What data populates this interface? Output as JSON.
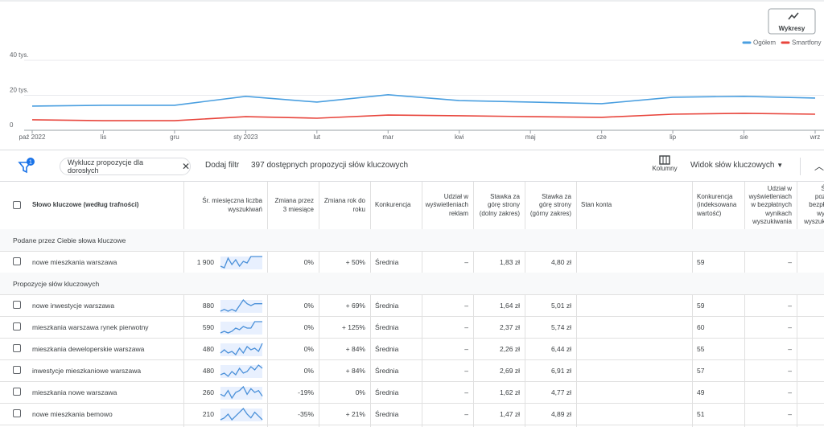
{
  "chart_data": {
    "type": "line",
    "button": "Wykresy",
    "x": [
      "paź 2022",
      "lis",
      "gru",
      "sty 2023",
      "lut",
      "mar",
      "kwi",
      "maj",
      "cze",
      "lip",
      "sie",
      "wrz"
    ],
    "ylim": [
      0,
      40000
    ],
    "yticks": [
      {
        "value": 0,
        "label": "0"
      },
      {
        "value": 20000,
        "label": "20 tys."
      },
      {
        "value": 40000,
        "label": "40 tys."
      }
    ],
    "grid": true,
    "series": [
      {
        "name": "Ogółem",
        "color": "#4a9fe0",
        "values": [
          13800,
          14300,
          14300,
          19400,
          16100,
          20300,
          17000,
          16100,
          15200,
          18900,
          19400,
          18400
        ]
      },
      {
        "name": "Smartfony",
        "color": "#e8453c",
        "values": [
          6000,
          5500,
          5500,
          7800,
          6900,
          8700,
          8300,
          7800,
          7400,
          9200,
          9700,
          9200
        ]
      }
    ]
  },
  "toolbar": {
    "filter_count": "1",
    "chip": "Wyklucz propozycje dla dorosłych",
    "add_filter": "Dodaj filtr",
    "summary": "397 dostępnych propozycji słów kluczowych",
    "columns": "Kolumny",
    "view": "Widok słów kluczowych"
  },
  "table": {
    "headers": [
      "Słowo kluczowe (według trafności)",
      "Śr. miesięczna liczba wyszukiwań",
      "Zmiana przez 3 miesiące",
      "Zmiana rok do roku",
      "Konkurencja",
      "Udział w wyświetleniach reklam",
      "Stawka za górę strony (dolny zakres)",
      "Stawka za górę strony (górny zakres)",
      "Stan konta",
      "Konkurencja (indeksowana wartość)",
      "Udział w wyświetleniach w bezpłatnych wynikach wyszukiwania",
      "Średnia pozycja w bezpłatnych wynikach wyszukiwania"
    ],
    "sections": [
      {
        "title": "Podane przez Ciebie słowa kluczowe",
        "rows": [
          {
            "cells": [
              "nowe mieszkania warszawa",
              "1 900",
              "0%",
              "+ 50%",
              "Średnia",
              "–",
              "1,83 zł",
              "4,80 zł",
              "59",
              "–"
            ],
            "trend": [
              3,
              2,
              8,
              4,
              7,
              3,
              6,
              5,
              9,
              9,
              9,
              9
            ]
          }
        ]
      },
      {
        "title": "Propozycje słów kluczowych",
        "rows": [
          {
            "cells": [
              "nowe inwestycje warszawa",
              "880",
              "0%",
              "+ 69%",
              "Średnia",
              "–",
              "1,64 zł",
              "5,01 zł",
              "59",
              "–"
            ],
            "trend": [
              2,
              3,
              2,
              3,
              2,
              5,
              8,
              6,
              5,
              6,
              6,
              6
            ]
          },
          {
            "cells": [
              "mieszkania warszawa rynek pierwotny",
              "590",
              "0%",
              "+ 125%",
              "Średnia",
              "–",
              "2,37 zł",
              "5,74 zł",
              "60",
              "–"
            ],
            "trend": [
              2,
              3,
              2,
              3,
              5,
              4,
              6,
              5,
              5,
              9,
              9,
              9
            ]
          },
          {
            "cells": [
              "mieszkania deweloperskie warszawa",
              "480",
              "0%",
              "+ 84%",
              "Średnia",
              "–",
              "2,26 zł",
              "6,44 zł",
              "55",
              "–"
            ],
            "trend": [
              3,
              5,
              3,
              4,
              2,
              6,
              3,
              7,
              5,
              6,
              4,
              9
            ]
          },
          {
            "cells": [
              "inwestycje mieszkaniowe warszawa",
              "480",
              "0%",
              "+ 84%",
              "Średnia",
              "–",
              "2,69 zł",
              "6,91 zł",
              "57",
              "–"
            ],
            "trend": [
              3,
              4,
              2,
              5,
              3,
              7,
              4,
              5,
              8,
              6,
              9,
              7
            ]
          },
          {
            "cells": [
              "mieszkania nowe warszawa",
              "260",
              "-19%",
              "0%",
              "Średnia",
              "–",
              "1,62 zł",
              "4,77 zł",
              "49",
              "–"
            ],
            "trend": [
              4,
              3,
              6,
              2,
              5,
              6,
              8,
              4,
              7,
              5,
              6,
              3
            ]
          },
          {
            "cells": [
              "nowe mieszkania bemowo",
              "210",
              "-35%",
              "+ 21%",
              "Średnia",
              "–",
              "1,47 zł",
              "4,89 zł",
              "51",
              "–"
            ],
            "trend": [
              2,
              3,
              5,
              2,
              4,
              6,
              8,
              5,
              3,
              6,
              4,
              2
            ]
          }
        ]
      }
    ]
  }
}
